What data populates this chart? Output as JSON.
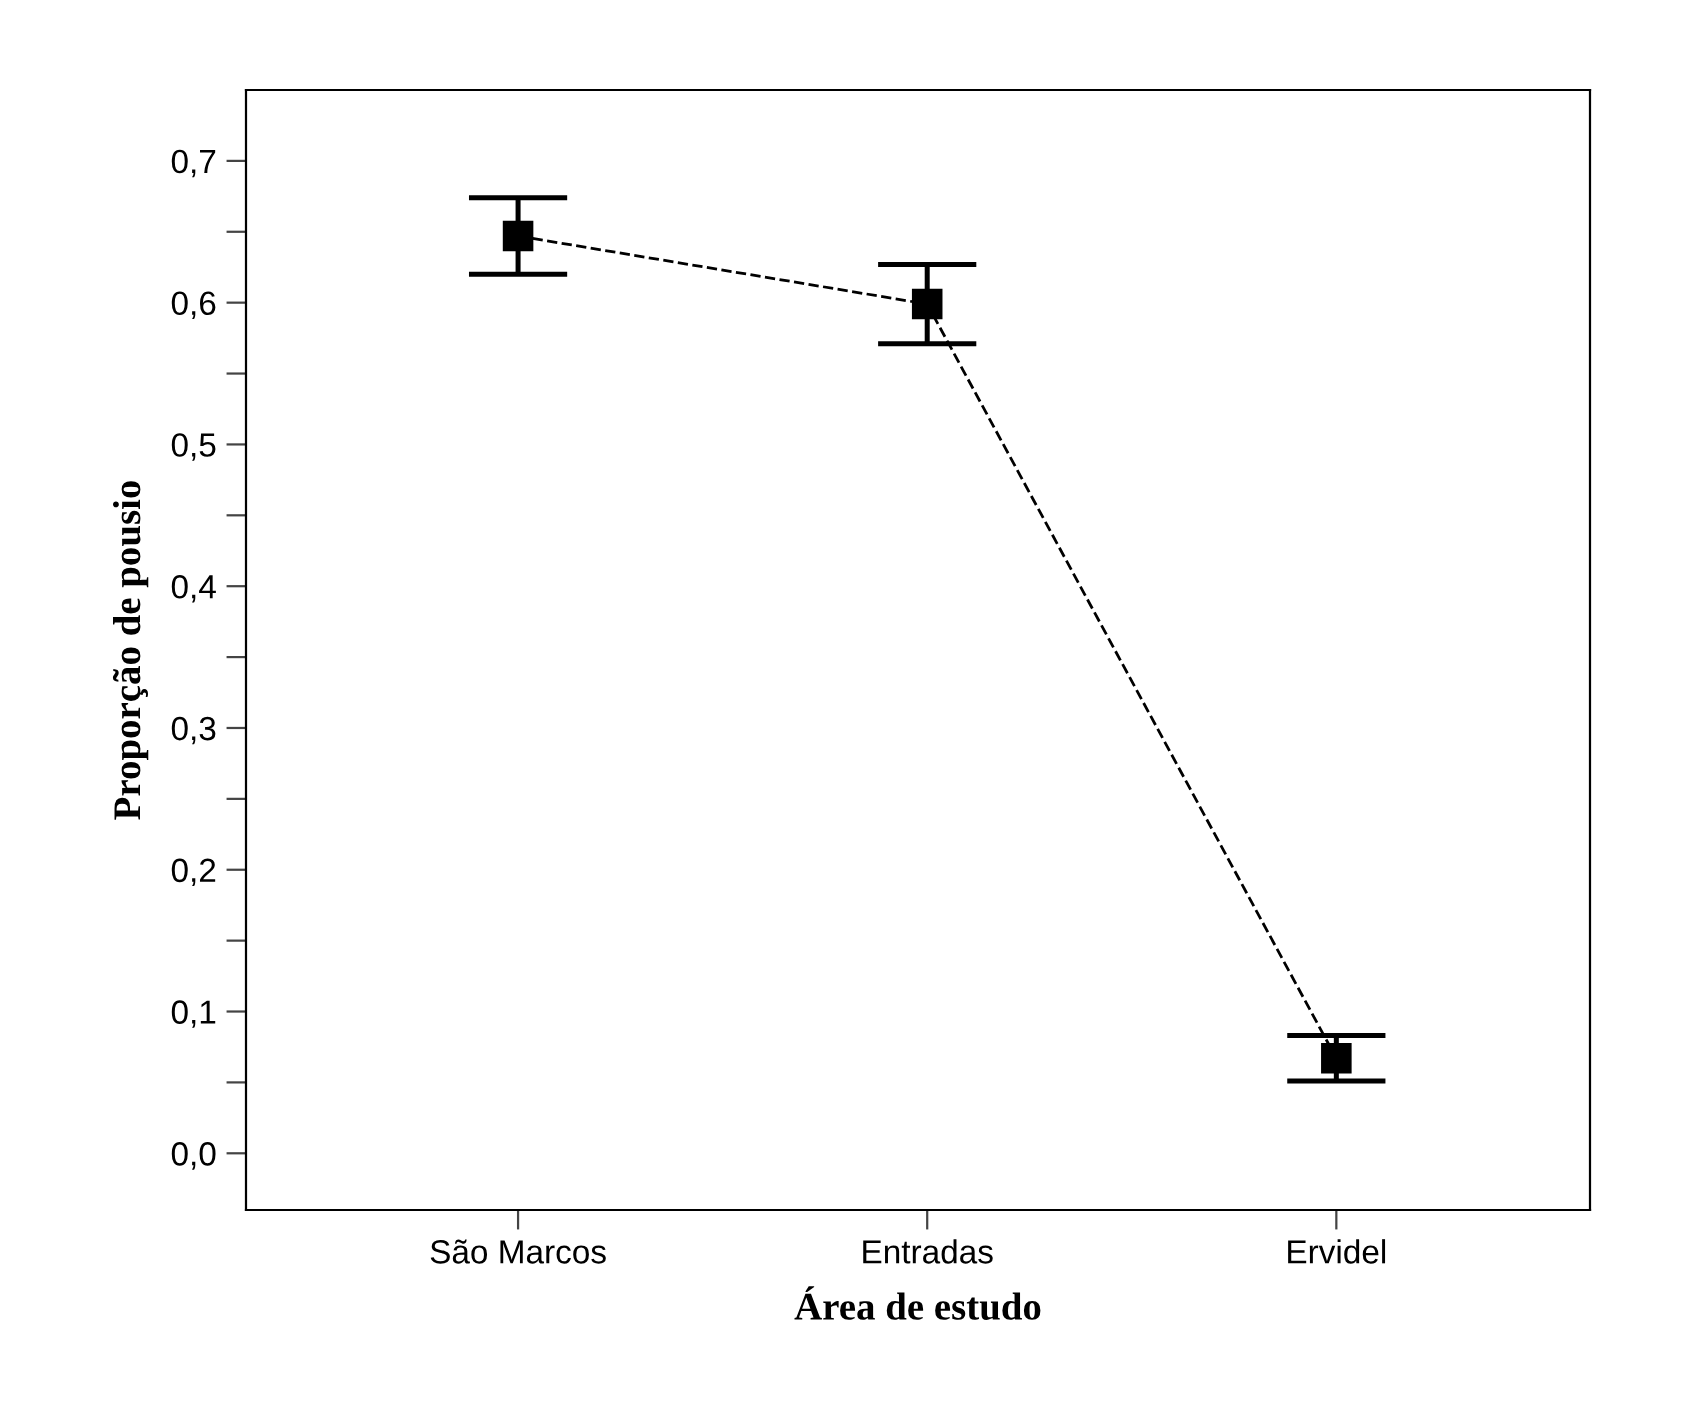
{
  "chart_data": {
    "type": "line",
    "xlabel": "Área de estudo",
    "ylabel": "Proporção de pousio",
    "categories": [
      "São Marcos",
      "Entradas",
      "Ervidel"
    ],
    "values": [
      0.647,
      0.599,
      0.067
    ],
    "errors": [
      0.027,
      0.028,
      0.016
    ],
    "color": "#000000",
    "marker": "square",
    "line_style": "dashed",
    "grid": false,
    "legend": false,
    "ylim": [
      -0.04,
      0.75
    ],
    "yticks": [
      {
        "value": 0.0,
        "label": "0,0"
      },
      {
        "value": 0.05,
        "label": null
      },
      {
        "value": 0.1,
        "label": "0,1"
      },
      {
        "value": 0.15,
        "label": null
      },
      {
        "value": 0.2,
        "label": "0,2"
      },
      {
        "value": 0.25,
        "label": null
      },
      {
        "value": 0.3,
        "label": "0,3"
      },
      {
        "value": 0.35,
        "label": null
      },
      {
        "value": 0.4,
        "label": "0,4"
      },
      {
        "value": 0.45,
        "label": null
      },
      {
        "value": 0.5,
        "label": "0,5"
      },
      {
        "value": 0.55,
        "label": null
      },
      {
        "value": 0.6,
        "label": "0,6"
      },
      {
        "value": 0.65,
        "label": null
      },
      {
        "value": 0.7,
        "label": "0,7"
      }
    ]
  }
}
